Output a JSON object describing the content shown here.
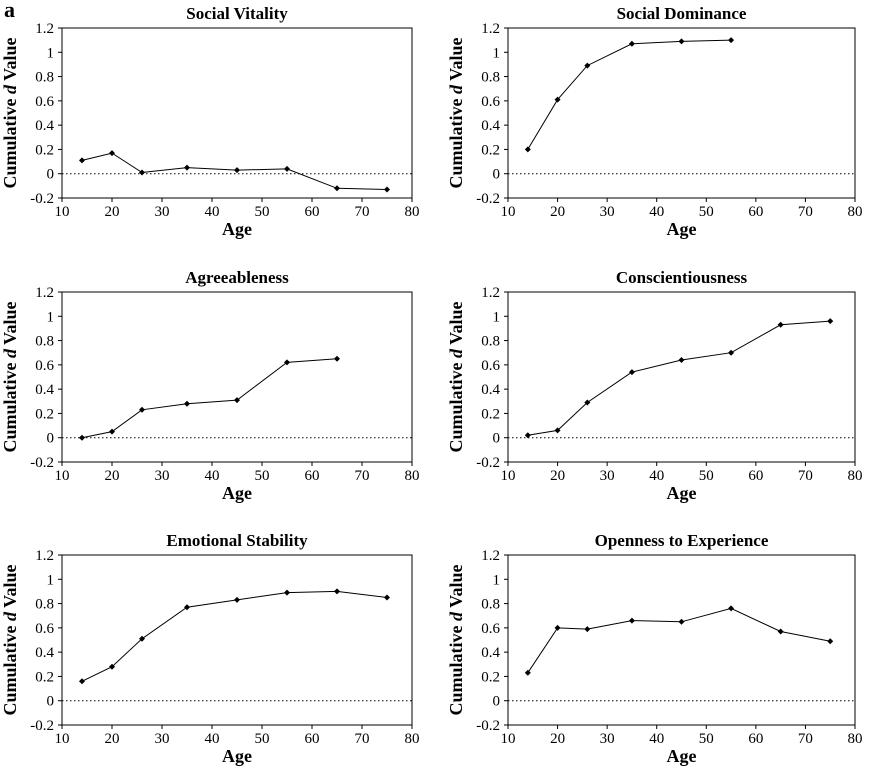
{
  "panel_label": "a",
  "chart_data": [
    {
      "type": "line",
      "title": "Social Vitality",
      "xlabel": "Age",
      "ylabel_parts": [
        "Cumulative ",
        "d",
        " Value"
      ],
      "xlim": [
        10,
        80
      ],
      "ylim": [
        -0.2,
        1.2
      ],
      "xticks": [
        "10",
        "20",
        "30",
        "40",
        "50",
        "60",
        "70",
        "80"
      ],
      "yticks": [
        "-0.2",
        "0",
        "0.2",
        "0.4",
        "0.6",
        "0.8",
        "1",
        "1.2"
      ],
      "reference_line": 0,
      "x": [
        14,
        20,
        26,
        35,
        45,
        55,
        65,
        75
      ],
      "values": [
        0.11,
        0.17,
        0.01,
        0.05,
        0.03,
        0.04,
        -0.12,
        -0.13
      ]
    },
    {
      "type": "line",
      "title": "Social Dominance",
      "xlabel": "Age",
      "ylabel_parts": [
        "Cumulative ",
        "d",
        " Value"
      ],
      "xlim": [
        10,
        80
      ],
      "ylim": [
        -0.2,
        1.2
      ],
      "xticks": [
        "10",
        "20",
        "30",
        "40",
        "50",
        "60",
        "70",
        "80"
      ],
      "yticks": [
        "-0.2",
        "0",
        "0.2",
        "0.4",
        "0.6",
        "0.8",
        "1",
        "1.2"
      ],
      "reference_line": 0,
      "x": [
        14,
        20,
        26,
        35,
        45,
        55
      ],
      "values": [
        0.2,
        0.61,
        0.89,
        1.07,
        1.09,
        1.1
      ]
    },
    {
      "type": "line",
      "title": "Agreeableness",
      "xlabel": "Age",
      "ylabel_parts": [
        "Cumulative ",
        "d",
        " Value"
      ],
      "xlim": [
        10,
        80
      ],
      "ylim": [
        -0.2,
        1.2
      ],
      "xticks": [
        "10",
        "20",
        "30",
        "40",
        "50",
        "60",
        "70",
        "80"
      ],
      "yticks": [
        "-0.2",
        "0",
        "0.2",
        "0.4",
        "0.6",
        "0.8",
        "1",
        "1.2"
      ],
      "reference_line": 0,
      "x": [
        14,
        20,
        26,
        35,
        45,
        55,
        65
      ],
      "values": [
        0.0,
        0.05,
        0.23,
        0.28,
        0.31,
        0.62,
        0.65
      ]
    },
    {
      "type": "line",
      "title": "Conscientiousness",
      "xlabel": "Age",
      "ylabel_parts": [
        "Cumulative ",
        "d",
        " Value"
      ],
      "xlim": [
        10,
        80
      ],
      "ylim": [
        -0.2,
        1.2
      ],
      "xticks": [
        "10",
        "20",
        "30",
        "40",
        "50",
        "60",
        "70",
        "80"
      ],
      "yticks": [
        "-0.2",
        "0",
        "0.2",
        "0.4",
        "0.6",
        "0.8",
        "1",
        "1.2"
      ],
      "reference_line": 0,
      "x": [
        14,
        20,
        26,
        35,
        45,
        55,
        65,
        75
      ],
      "values": [
        0.02,
        0.06,
        0.29,
        0.54,
        0.64,
        0.7,
        0.93,
        0.96
      ]
    },
    {
      "type": "line",
      "title": "Emotional Stability",
      "xlabel": "Age",
      "ylabel_parts": [
        "Cumulative ",
        "d",
        " Value"
      ],
      "xlim": [
        10,
        80
      ],
      "ylim": [
        -0.2,
        1.2
      ],
      "xticks": [
        "10",
        "20",
        "30",
        "40",
        "50",
        "60",
        "70",
        "80"
      ],
      "yticks": [
        "-0.2",
        "0",
        "0.2",
        "0.4",
        "0.6",
        "0.8",
        "1",
        "1.2"
      ],
      "reference_line": 0,
      "x": [
        14,
        20,
        26,
        35,
        45,
        55,
        65,
        75
      ],
      "values": [
        0.16,
        0.28,
        0.51,
        0.77,
        0.83,
        0.89,
        0.9,
        0.85
      ]
    },
    {
      "type": "line",
      "title": "Openness to Experience",
      "xlabel": "Age",
      "ylabel_parts": [
        "Cumulative ",
        "d",
        " Value"
      ],
      "xlim": [
        10,
        80
      ],
      "ylim": [
        -0.2,
        1.2
      ],
      "xticks": [
        "10",
        "20",
        "30",
        "40",
        "50",
        "60",
        "70",
        "80"
      ],
      "yticks": [
        "-0.2",
        "0",
        "0.2",
        "0.4",
        "0.6",
        "0.8",
        "1",
        "1.2"
      ],
      "reference_line": 0,
      "x": [
        14,
        20,
        26,
        35,
        45,
        55,
        65,
        75
      ],
      "values": [
        0.23,
        0.6,
        0.59,
        0.66,
        0.65,
        0.76,
        0.57,
        0.49
      ]
    }
  ]
}
